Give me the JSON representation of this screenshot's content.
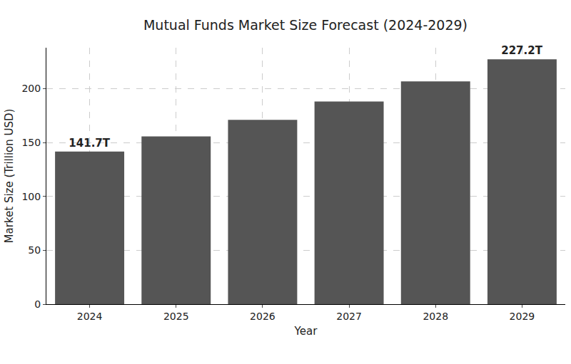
{
  "chart_data": {
    "type": "bar",
    "title": "Mutual Funds Market Size Forecast (2024-2029)",
    "x_label": "Year",
    "y_label": "Market Size (Trillion USD)",
    "categories": [
      "2024",
      "2025",
      "2026",
      "2027",
      "2028",
      "2029"
    ],
    "values": [
      141.7,
      155.7,
      171.1,
      188.1,
      206.7,
      227.2
    ],
    "value_labels": [
      "141.7T",
      null,
      null,
      null,
      null,
      "227.2T"
    ],
    "data_labels": true,
    "color": "#555555",
    "ylim": [
      0,
      238
    ],
    "yticks": [
      0,
      50,
      100,
      150,
      200
    ],
    "grid": true
  }
}
